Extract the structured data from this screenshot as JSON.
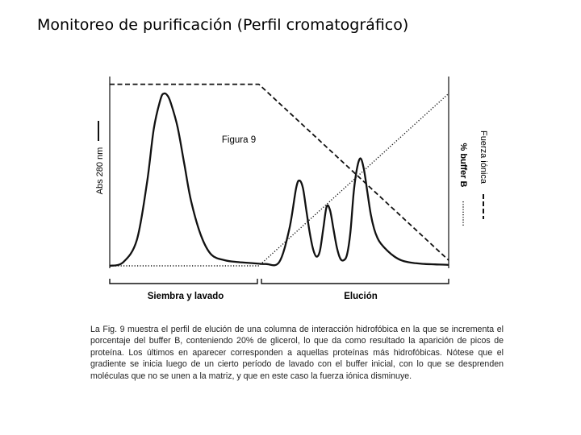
{
  "slide": {
    "title": "Monitoreo de purificación (Perfil cromatográfico)"
  },
  "figure": {
    "label": "Figura 9",
    "caption": "La Fig. 9 muestra el perfil de elución de una columna de interacción hidrofóbica en la que se incrementa el porcentaje del buffer B, conteniendo 20% de glicerol, lo que da como resultado la aparición de picos de proteína. Los últimos en aparecer corresponden a aquellas proteínas más hidrofóbicas. Nótese que el gradiente se inicia luego de un cierto período de lavado con el buffer inicial, con lo que se desprenden moléculas que no se unen a la matriz, y que en este caso la fuerza iónica disminuye."
  },
  "chart_data": {
    "type": "line",
    "ylabel": "Abs 280 nm",
    "y2_labels": [
      "% buffer B",
      "Fuerza iónica"
    ],
    "phases": [
      "Siembra y lavado",
      "Elución"
    ],
    "xlim": [
      0,
      100
    ],
    "ylim": [
      0,
      100
    ],
    "grid": false,
    "series": [
      {
        "name": "Abs 280 nm",
        "style": "solid",
        "x": [
          0,
          4,
          8,
          11,
          13,
          15,
          16,
          17,
          18,
          20,
          22,
          24,
          27,
          30,
          34,
          38,
          42,
          46,
          50,
          53,
          55,
          56,
          57,
          58,
          59,
          60,
          61,
          62,
          63,
          64,
          65,
          66,
          67,
          68,
          69,
          70,
          71,
          72,
          73,
          74,
          75,
          76,
          77,
          78,
          79,
          80,
          82,
          84,
          86,
          88,
          90,
          93,
          96,
          100
        ],
        "values": [
          0,
          2,
          14,
          45,
          74,
          90,
          93,
          92,
          88,
          75,
          55,
          35,
          16,
          6,
          3,
          2,
          1.5,
          1,
          2,
          20,
          42,
          46,
          42,
          30,
          18,
          9,
          5,
          8,
          20,
          32,
          30,
          20,
          10,
          4,
          3,
          6,
          18,
          40,
          53,
          58,
          52,
          40,
          28,
          20,
          15,
          12,
          8,
          5,
          3,
          2,
          1.5,
          1,
          0.8,
          0.5
        ]
      },
      {
        "name": "% buffer B",
        "style": "dotted",
        "x": [
          0,
          44,
          100
        ],
        "values": [
          0,
          0,
          93
        ]
      },
      {
        "name": "Fuerza iónica",
        "style": "dashed",
        "x": [
          0,
          44,
          100
        ],
        "values": [
          98,
          98,
          3
        ]
      }
    ]
  }
}
